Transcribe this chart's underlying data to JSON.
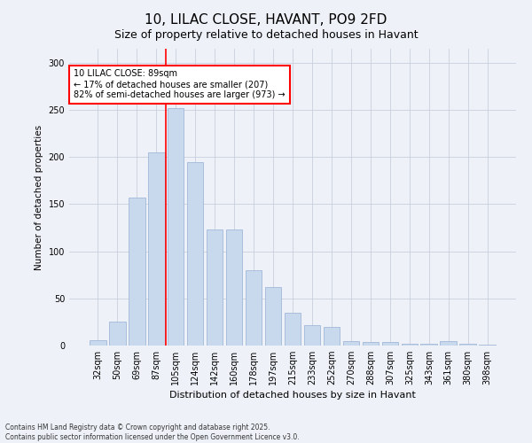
{
  "title": "10, LILAC CLOSE, HAVANT, PO9 2FD",
  "subtitle": "Size of property relative to detached houses in Havant",
  "xlabel": "Distribution of detached houses by size in Havant",
  "ylabel": "Number of detached properties",
  "categories": [
    "32sqm",
    "50sqm",
    "69sqm",
    "87sqm",
    "105sqm",
    "124sqm",
    "142sqm",
    "160sqm",
    "178sqm",
    "197sqm",
    "215sqm",
    "233sqm",
    "252sqm",
    "270sqm",
    "288sqm",
    "307sqm",
    "325sqm",
    "343sqm",
    "361sqm",
    "380sqm",
    "398sqm"
  ],
  "values": [
    6,
    25,
    157,
    205,
    252,
    195,
    123,
    123,
    80,
    62,
    35,
    22,
    20,
    5,
    4,
    4,
    2,
    2,
    5,
    2,
    1
  ],
  "bar_color": "#c9d9ed",
  "bar_edge_color": "#a0b8d8",
  "vline_pos": 3.5,
  "annotation_text": "10 LILAC CLOSE: 89sqm\n← 17% of detached houses are smaller (207)\n82% of semi-detached houses are larger (973) →",
  "annotation_box_color": "white",
  "annotation_box_edge_color": "red",
  "vline_color": "red",
  "grid_color": "#c8d0dc",
  "background_color": "#eef2f8",
  "footnote": "Contains HM Land Registry data © Crown copyright and database right 2025.\nContains public sector information licensed under the Open Government Licence v3.0.",
  "ylim": [
    0,
    315
  ],
  "yticks": [
    0,
    50,
    100,
    150,
    200,
    250,
    300
  ],
  "title_fontsize": 11,
  "subtitle_fontsize": 9,
  "xlabel_fontsize": 8,
  "ylabel_fontsize": 7.5,
  "tick_fontsize": 7,
  "annot_fontsize": 7,
  "footnote_fontsize": 5.5
}
